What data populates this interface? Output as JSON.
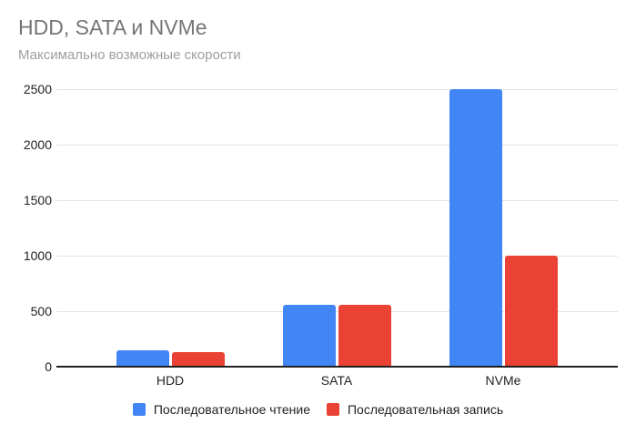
{
  "chart_data": {
    "type": "bar",
    "title": "HDD, SATA и NVMe",
    "subtitle": "Максимально возможные скорости",
    "categories": [
      "HDD",
      "SATA",
      "NVMe"
    ],
    "series": [
      {
        "name": "Последовательное чтение",
        "key": "read",
        "color": "#4285f4",
        "values": [
          150,
          560,
          2500
        ]
      },
      {
        "name": "Последовательная запись",
        "key": "write",
        "color": "#ea4335",
        "values": [
          130,
          560,
          1000
        ]
      }
    ],
    "xlabel": "",
    "ylabel": "",
    "ylim": [
      0,
      2500
    ],
    "yticks": [
      0,
      500,
      1000,
      1500,
      2000,
      2500
    ],
    "grid": true,
    "legend_position": "bottom"
  },
  "colors": {
    "background": "#ffffff",
    "title": "#757575",
    "subtitle": "#9e9e9e",
    "axis_text": "#222222",
    "gridline": "#e3e3e3",
    "baseline": "#212121"
  }
}
